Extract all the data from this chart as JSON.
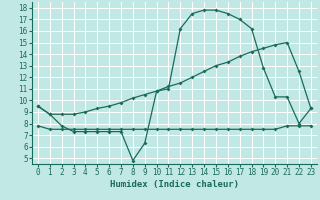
{
  "xlabel": "Humidex (Indice chaleur)",
  "bg_color": "#c2e8e5",
  "grid_color": "#ffffff",
  "line_color": "#1a6b5a",
  "xlim": [
    -0.5,
    23.5
  ],
  "ylim": [
    4.5,
    18.5
  ],
  "xticks": [
    0,
    1,
    2,
    3,
    4,
    5,
    6,
    7,
    8,
    9,
    10,
    11,
    12,
    13,
    14,
    15,
    16,
    17,
    18,
    19,
    20,
    21,
    22,
    23
  ],
  "yticks": [
    5,
    6,
    7,
    8,
    9,
    10,
    11,
    12,
    13,
    14,
    15,
    16,
    17,
    18
  ],
  "line1_x": [
    0,
    1,
    2,
    3,
    4,
    5,
    6,
    7,
    8,
    9,
    10,
    11,
    12,
    13,
    14,
    15,
    16,
    17,
    18,
    19,
    20,
    21,
    22,
    23
  ],
  "line1_y": [
    9.5,
    8.8,
    7.8,
    7.3,
    7.3,
    7.3,
    7.3,
    7.3,
    4.8,
    6.3,
    10.8,
    11.0,
    16.2,
    17.5,
    17.8,
    17.8,
    17.5,
    17.0,
    16.2,
    12.8,
    10.3,
    10.3,
    8.0,
    9.3
  ],
  "line2_x": [
    0,
    1,
    2,
    3,
    4,
    5,
    6,
    7,
    8,
    9,
    10,
    11,
    12,
    13,
    14,
    15,
    16,
    17,
    18,
    19,
    20,
    21,
    22,
    23
  ],
  "line2_y": [
    9.5,
    8.8,
    8.8,
    8.8,
    9.0,
    9.3,
    9.5,
    9.8,
    10.2,
    10.5,
    10.8,
    11.2,
    11.5,
    12.0,
    12.5,
    13.0,
    13.3,
    13.8,
    14.2,
    14.5,
    14.8,
    15.0,
    12.5,
    9.3
  ],
  "line3_x": [
    0,
    1,
    2,
    3,
    4,
    5,
    6,
    7,
    8,
    9,
    10,
    11,
    12,
    13,
    14,
    15,
    16,
    17,
    18,
    19,
    20,
    21,
    22,
    23
  ],
  "line3_y": [
    7.8,
    7.5,
    7.5,
    7.5,
    7.5,
    7.5,
    7.5,
    7.5,
    7.5,
    7.5,
    7.5,
    7.5,
    7.5,
    7.5,
    7.5,
    7.5,
    7.5,
    7.5,
    7.5,
    7.5,
    7.5,
    7.8,
    7.8,
    7.8
  ]
}
